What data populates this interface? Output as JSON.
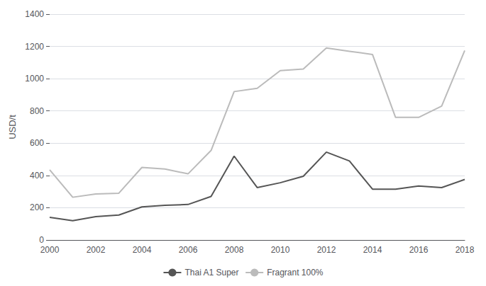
{
  "chart_data": {
    "type": "line",
    "ylabel": "USD/t",
    "x": [
      2000,
      2001,
      2002,
      2003,
      2004,
      2005,
      2006,
      2007,
      2008,
      2009,
      2010,
      2011,
      2012,
      2013,
      2014,
      2015,
      2016,
      2017,
      2018
    ],
    "series": [
      {
        "name": "Fragrant 100%",
        "color": "#bbbbbb",
        "values": [
          435,
          265,
          285,
          290,
          450,
          440,
          410,
          555,
          920,
          940,
          1050,
          1060,
          1190,
          1170,
          1150,
          760,
          760,
          830,
          1175
        ]
      },
      {
        "name": "Thai A1 Super",
        "color": "#555555",
        "values": [
          140,
          120,
          145,
          155,
          205,
          215,
          220,
          270,
          520,
          325,
          355,
          395,
          545,
          490,
          315,
          315,
          335,
          325,
          375
        ]
      }
    ],
    "xlim": [
      2000,
      2018
    ],
    "xticks": [
      2000,
      2002,
      2004,
      2006,
      2008,
      2010,
      2012,
      2014,
      2016,
      2018
    ],
    "ylim": [
      0,
      1400
    ],
    "yticks": [
      0,
      200,
      400,
      600,
      800,
      1000,
      1200,
      1400
    ],
    "grid": true,
    "legend": "bottom"
  }
}
